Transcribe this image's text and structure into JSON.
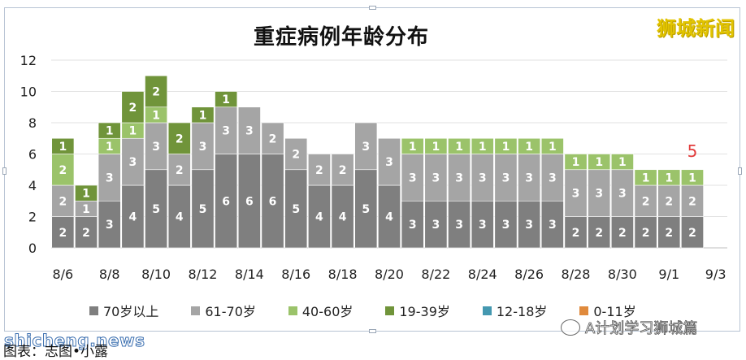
{
  "brand": "狮城新闻",
  "watermark_site": "shicheng.news",
  "watermark_account": "A计划学习狮城篇",
  "caption": "图表：志图•小露",
  "annotation": {
    "text": "5",
    "category_index": 27,
    "color": "#e23b3b"
  },
  "colors": {
    "70岁以上": "#7f7f7f",
    "61-70岁": "#a5a5a5",
    "40-60岁": "#9bc36a",
    "19-39岁": "#70943a",
    "12-18岁": "#4498b0",
    "0-11岁": "#e08a3c"
  },
  "chart_data": {
    "type": "bar",
    "stacked": true,
    "title": "重症病例年龄分布",
    "categories": [
      "8/6",
      "8/7",
      "8/8",
      "8/9",
      "8/10",
      "8/11",
      "8/12",
      "8/13",
      "8/14",
      "8/15",
      "8/16",
      "8/17",
      "8/18",
      "8/19",
      "8/20",
      "8/21",
      "8/22",
      "8/23",
      "8/24",
      "8/25",
      "8/26",
      "8/27",
      "8/28",
      "8/29",
      "8/30",
      "8/31",
      "9/1",
      "9/2",
      "9/3"
    ],
    "tick_labels": [
      "8/6",
      "8/8",
      "8/10",
      "8/12",
      "8/14",
      "8/16",
      "8/18",
      "8/20",
      "8/22",
      "8/24",
      "8/26",
      "8/28",
      "8/30",
      "9/1",
      "9/3"
    ],
    "y_ticks": [
      "0",
      "2",
      "4",
      "6",
      "8",
      "10",
      "12"
    ],
    "ylim": [
      0,
      12
    ],
    "legend_position": "bottom",
    "series": [
      {
        "name": "70岁以上",
        "values": [
          2,
          2,
          3,
          4,
          5,
          4,
          5,
          6,
          6,
          6,
          5,
          4,
          4,
          5,
          4,
          3,
          3,
          3,
          3,
          3,
          3,
          3,
          2,
          2,
          2,
          2,
          2,
          2,
          0
        ]
      },
      {
        "name": "61-70岁",
        "values": [
          2,
          1,
          3,
          3,
          3,
          2,
          3,
          3,
          3,
          2,
          2,
          2,
          2,
          3,
          3,
          3,
          3,
          3,
          3,
          3,
          3,
          3,
          3,
          3,
          3,
          2,
          2,
          2,
          0
        ]
      },
      {
        "name": "40-60岁",
        "values": [
          2,
          0,
          1,
          1,
          1,
          0,
          0,
          0,
          0,
          0,
          0,
          0,
          0,
          0,
          0,
          1,
          1,
          1,
          1,
          1,
          1,
          1,
          1,
          1,
          1,
          1,
          1,
          1,
          0
        ]
      },
      {
        "name": "19-39岁",
        "values": [
          1,
          1,
          1,
          2,
          2,
          2,
          1,
          1,
          0,
          0,
          0,
          0,
          0,
          0,
          0,
          0,
          0,
          0,
          0,
          0,
          0,
          0,
          0,
          0,
          0,
          0,
          0,
          0,
          0
        ]
      },
      {
        "name": "12-18岁",
        "values": [
          0,
          0,
          0,
          0,
          0,
          0,
          0,
          0,
          0,
          0,
          0,
          0,
          0,
          0,
          0,
          0,
          0,
          0,
          0,
          0,
          0,
          0,
          0,
          0,
          0,
          0,
          0,
          0,
          0
        ]
      },
      {
        "name": "0-11岁",
        "values": [
          0,
          0,
          0,
          0,
          0,
          0,
          0,
          0,
          0,
          0,
          0,
          0,
          0,
          0,
          0,
          0,
          0,
          0,
          0,
          0,
          0,
          0,
          0,
          0,
          0,
          0,
          0,
          0,
          0
        ]
      }
    ]
  }
}
